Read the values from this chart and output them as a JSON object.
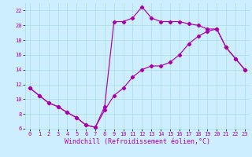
{
  "line1_x": [
    0,
    1,
    2,
    3,
    4,
    5,
    6,
    7,
    8,
    9,
    10,
    11,
    12,
    13,
    14,
    15,
    16,
    17,
    18,
    19,
    20,
    21,
    22,
    23
  ],
  "line1_y": [
    11.5,
    10.5,
    9.5,
    9.0,
    8.2,
    7.5,
    6.5,
    6.2,
    8.5,
    10.5,
    11.5,
    13.0,
    14.0,
    14.5,
    14.5,
    15.0,
    16.0,
    17.5,
    18.5,
    19.2,
    19.5,
    17.0,
    15.5,
    14.0
  ],
  "line2_x": [
    0,
    1,
    2,
    3,
    4,
    5,
    6,
    7,
    8,
    9,
    10,
    11,
    12,
    13,
    14,
    15,
    16,
    17,
    18,
    19,
    20,
    21,
    22,
    23
  ],
  "line2_y": [
    11.5,
    10.5,
    9.5,
    9.0,
    8.2,
    7.5,
    6.5,
    6.2,
    9.0,
    20.5,
    20.5,
    21.0,
    22.5,
    21.0,
    20.5,
    20.5,
    20.5,
    20.2,
    20.0,
    19.5,
    19.5,
    17.0,
    15.5,
    14.0
  ],
  "color": "#aa00aa",
  "bg_color": "#cceeff",
  "grid_color": "#aadddd",
  "xlabel": "Windchill (Refroidissement éolien,°C)",
  "xlim": [
    -0.5,
    23.5
  ],
  "ylim": [
    6,
    23
  ],
  "xticks": [
    0,
    1,
    2,
    3,
    4,
    5,
    6,
    7,
    8,
    9,
    10,
    11,
    12,
    13,
    14,
    15,
    16,
    17,
    18,
    19,
    20,
    21,
    22,
    23
  ],
  "yticks": [
    6,
    8,
    10,
    12,
    14,
    16,
    18,
    20,
    22
  ],
  "tick_fontsize": 5.0,
  "xlabel_fontsize": 6.0,
  "marker": "D",
  "markersize": 2.2,
  "linewidth": 0.85
}
